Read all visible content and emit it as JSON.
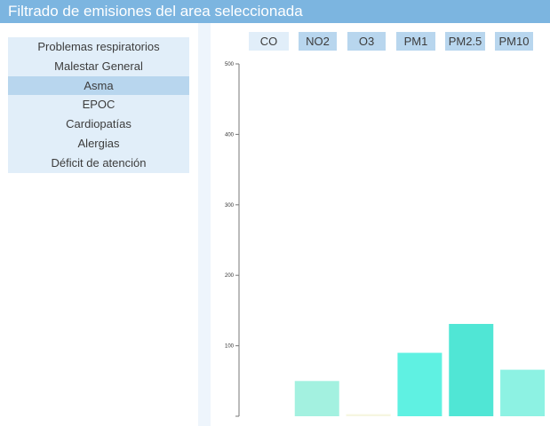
{
  "header": {
    "title": "Filtrado de emisiones del area seleccionada"
  },
  "sidebar": {
    "items": [
      {
        "label": "Problemas respiratorios",
        "active": false
      },
      {
        "label": "Malestar General",
        "active": false
      },
      {
        "label": "Asma",
        "active": true
      },
      {
        "label": "EPOC",
        "active": false
      },
      {
        "label": "Cardiopatías",
        "active": false
      },
      {
        "label": "Alergias",
        "active": false
      },
      {
        "label": "Déficit de atención",
        "active": false
      }
    ]
  },
  "tabs": [
    {
      "label": "CO",
      "active": false
    },
    {
      "label": "NO2",
      "active": true
    },
    {
      "label": "O3",
      "active": true
    },
    {
      "label": "PM1",
      "active": true
    },
    {
      "label": "PM2.5",
      "active": true
    },
    {
      "label": "PM10",
      "active": true
    }
  ],
  "chart_data": {
    "type": "bar",
    "categories": [
      "CO",
      "NO2",
      "O3",
      "PM1",
      "PM2.5",
      "PM10"
    ],
    "values": [
      0,
      50,
      3,
      90,
      131,
      66
    ],
    "colors": [
      "#ffffff",
      "#a3f1e0",
      "#f6f6e1",
      "#5ff1e2",
      "#50e6d5",
      "#8df2e3"
    ],
    "yticks": [
      100,
      200,
      300,
      400,
      500
    ],
    "ylim": [
      0,
      500
    ]
  }
}
